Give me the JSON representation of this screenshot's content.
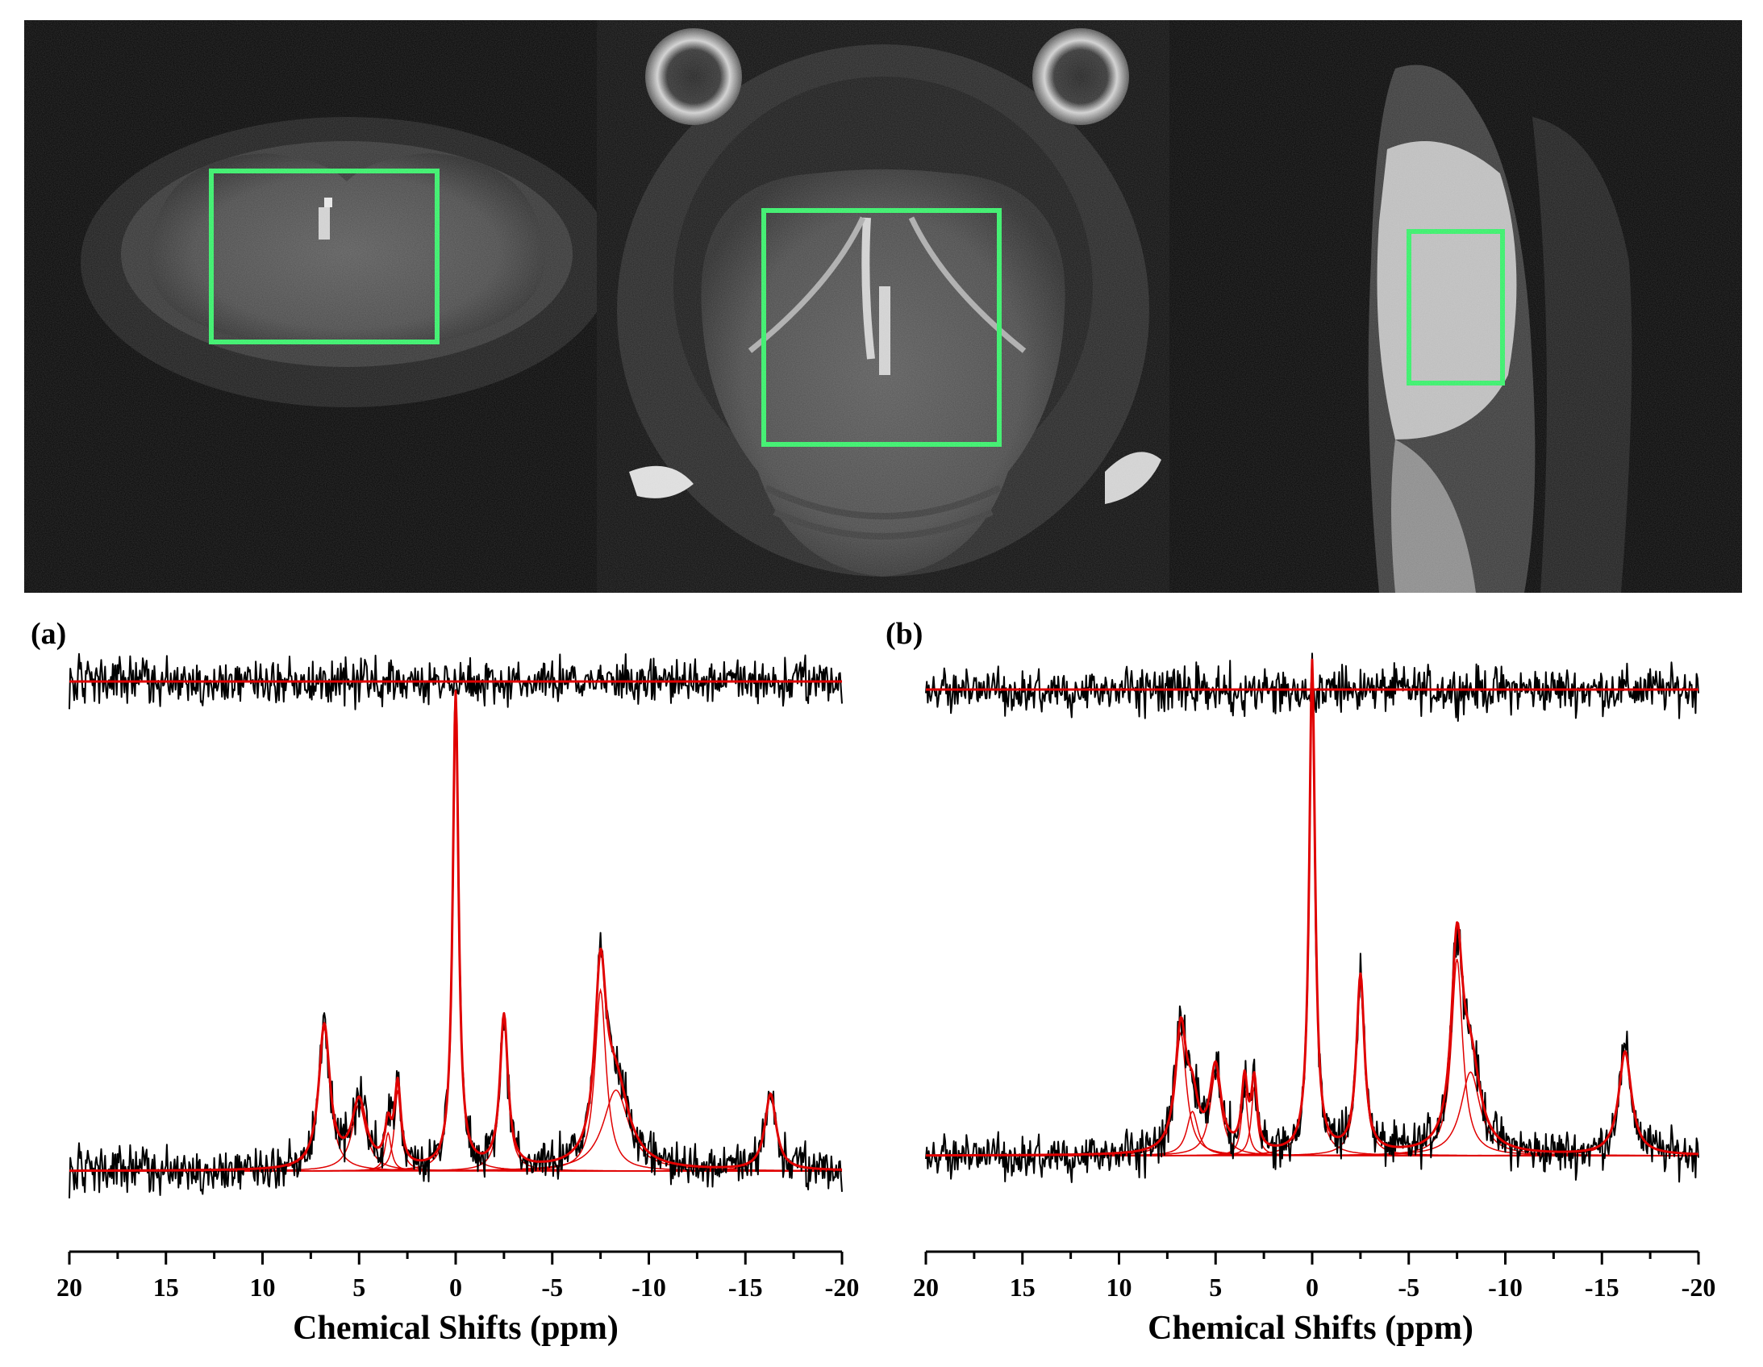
{
  "colors": {
    "data_trace": "#000000",
    "fit_trace": "#e00000",
    "roi_box": "#33ee66",
    "mri_background": "#000000"
  },
  "mri_panels": [
    {
      "view": "coronal",
      "roi": true
    },
    {
      "view": "axial",
      "roi": true
    },
    {
      "view": "sagittal",
      "roi": true
    }
  ],
  "chart_data": [
    {
      "type": "line",
      "panel_label": "(a)",
      "xlabel": "Chemical Shifts (ppm)",
      "xlim": [
        20,
        -20
      ],
      "xticks": [
        20,
        15,
        10,
        5,
        0,
        -5,
        -10,
        -15,
        -20
      ],
      "xtick_labels": [
        "20",
        "15",
        "10",
        "5",
        "0",
        "-5",
        "-10",
        "-15",
        "-20"
      ],
      "grid": false,
      "baseline_noise": 0.045,
      "series": [
        {
          "role": "spectrum",
          "color": "#000000"
        },
        {
          "role": "fit",
          "color": "#e00000"
        },
        {
          "role": "residual",
          "color": "#000000"
        }
      ],
      "peaks": [
        {
          "ppm": 6.8,
          "height": 0.3,
          "width": 0.35
        },
        {
          "ppm": 5.0,
          "height": 0.14,
          "width": 0.45
        },
        {
          "ppm": 3.0,
          "height": 0.17,
          "width": 0.2
        },
        {
          "ppm": 3.5,
          "height": 0.08,
          "width": 0.2
        },
        {
          "ppm": 0.0,
          "height": 1.0,
          "width": 0.18
        },
        {
          "ppm": -2.5,
          "height": 0.32,
          "width": 0.25
        },
        {
          "ppm": -7.5,
          "height": 0.38,
          "width": 0.35
        },
        {
          "ppm": -8.3,
          "height": 0.17,
          "width": 0.8
        },
        {
          "ppm": -16.3,
          "height": 0.16,
          "width": 0.35
        }
      ]
    },
    {
      "type": "line",
      "panel_label": "(b)",
      "xlabel": "Chemical Shifts (ppm)",
      "xlim": [
        20,
        -20
      ],
      "xticks": [
        20,
        15,
        10,
        5,
        0,
        -5,
        -10,
        -15,
        -20
      ],
      "xtick_labels": [
        "20",
        "15",
        "10",
        "5",
        "0",
        "-5",
        "-10",
        "-15",
        "-20"
      ],
      "grid": false,
      "baseline_noise": 0.045,
      "series": [
        {
          "role": "spectrum",
          "color": "#000000"
        },
        {
          "role": "fit",
          "color": "#e00000"
        },
        {
          "role": "residual",
          "color": "#000000"
        }
      ],
      "peaks": [
        {
          "ppm": 6.8,
          "height": 0.25,
          "width": 0.35
        },
        {
          "ppm": 6.2,
          "height": 0.09,
          "width": 0.35
        },
        {
          "ppm": 5.0,
          "height": 0.17,
          "width": 0.35
        },
        {
          "ppm": 3.5,
          "height": 0.14,
          "width": 0.18
        },
        {
          "ppm": 3.0,
          "height": 0.14,
          "width": 0.18
        },
        {
          "ppm": 0.0,
          "height": 1.0,
          "width": 0.18
        },
        {
          "ppm": -2.5,
          "height": 0.36,
          "width": 0.25
        },
        {
          "ppm": -7.5,
          "height": 0.4,
          "width": 0.35
        },
        {
          "ppm": -8.2,
          "height": 0.17,
          "width": 0.6
        },
        {
          "ppm": -16.2,
          "height": 0.21,
          "width": 0.4
        }
      ]
    }
  ]
}
